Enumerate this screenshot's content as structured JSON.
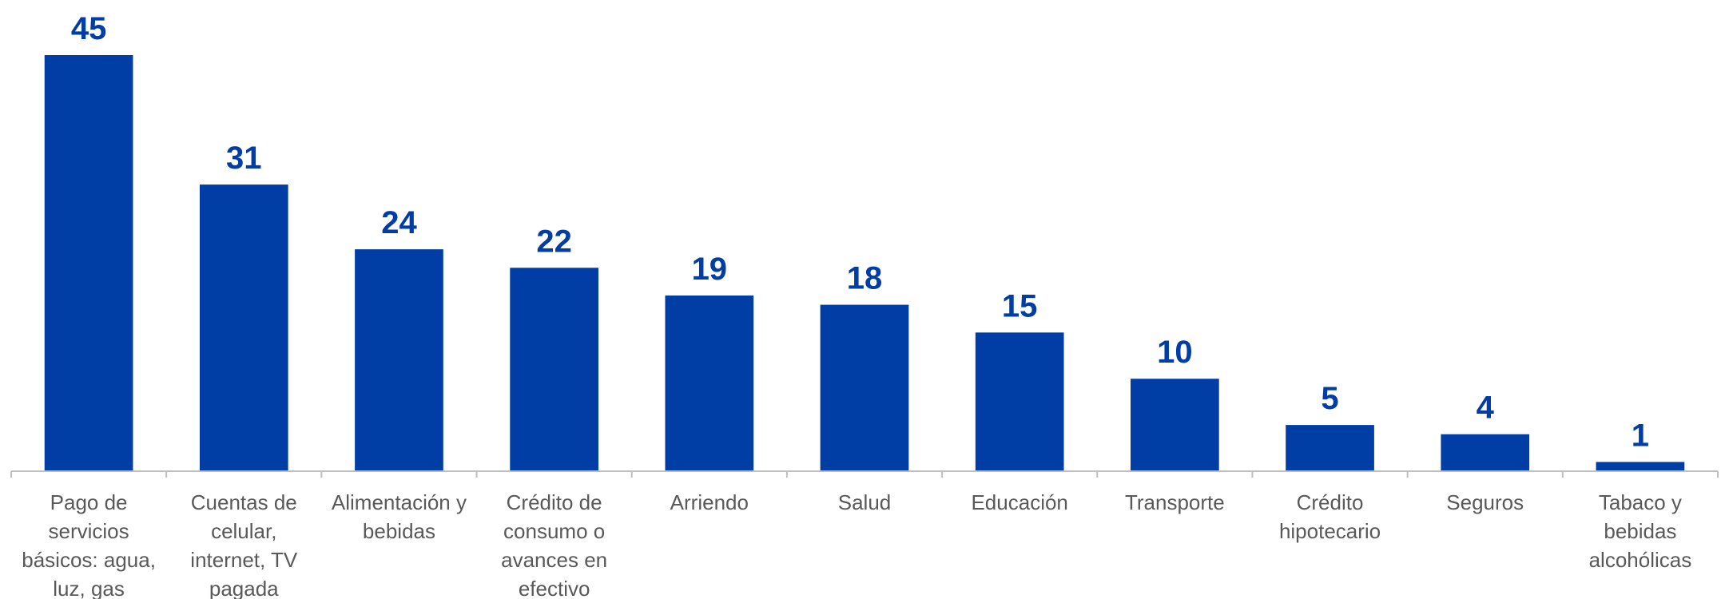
{
  "chart_data": {
    "type": "bar",
    "title": "",
    "xlabel": "",
    "ylabel": "",
    "ylim": [
      0,
      45
    ],
    "grid": false,
    "bar_color": "#003DA5",
    "label_color": "#003DA5",
    "categories": [
      [
        "Pago de",
        "servicios",
        "básicos: agua,",
        "luz, gas"
      ],
      [
        "Cuentas de",
        "celular,",
        "internet, TV",
        "pagada"
      ],
      [
        "Alimentación y",
        "bebidas"
      ],
      [
        "Crédito de",
        "consumo o",
        "avances en",
        "efectivo"
      ],
      [
        "Arriendo"
      ],
      [
        "Salud"
      ],
      [
        "Educación"
      ],
      [
        "Transporte"
      ],
      [
        "Crédito",
        "hipotecario"
      ],
      [
        "Seguros"
      ],
      [
        "Tabaco y",
        "bebidas",
        "alcohólicas"
      ]
    ],
    "values": [
      45,
      31,
      24,
      22,
      19,
      18,
      15,
      10,
      5,
      4,
      1
    ]
  }
}
